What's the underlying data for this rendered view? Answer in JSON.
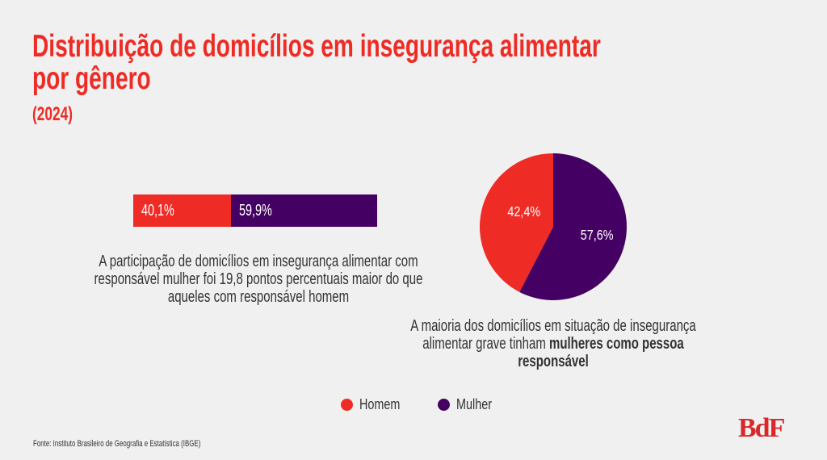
{
  "title": "Distribuição de domicílios em insegurança alimentar por gênero",
  "title_line1": "Distribuição de domicílios em insegurança alimentar",
  "title_line2": "por gênero",
  "subtitle": "(2024)",
  "colors": {
    "homem": "#ee2b24",
    "mulher": "#450063",
    "title": "#ee2b24",
    "background": "#f0f0f0"
  },
  "chart_data": [
    {
      "type": "bar",
      "orientation": "horizontal-stacked",
      "categories": [
        "Homem",
        "Mulher"
      ],
      "values": [
        40.1,
        59.9
      ],
      "labels": [
        "40,1%",
        "59,9%"
      ],
      "caption": "A participação de domicílios em insegurança alimentar com responsável mulher foi 19,8 pontos percentuais maior do que aqueles com responsável homem"
    },
    {
      "type": "pie",
      "categories": [
        "Homem",
        "Mulher"
      ],
      "values": [
        42.4,
        57.6
      ],
      "labels": [
        "42,4%",
        "57,6%"
      ],
      "caption_plain": "A maioria dos domicílios em situação de insegurança alimentar grave tinham",
      "caption_bold": "mulheres como pessoa responsável"
    }
  ],
  "legend": [
    {
      "label": "Homem"
    },
    {
      "label": "Mulher"
    }
  ],
  "source": "Fonte: Instituto Brasileiro de Geografia e Estatística (IBGE)",
  "logo": "BdF"
}
